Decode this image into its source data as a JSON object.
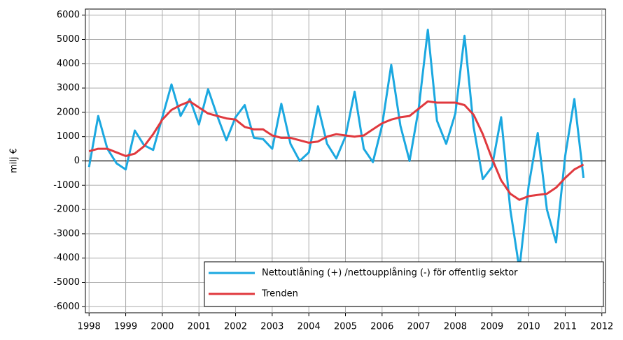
{
  "chart_data": {
    "type": "line",
    "ylabel": "milj €",
    "x": [
      1998,
      1998.25,
      1998.5,
      1998.75,
      1999,
      1999.25,
      1999.5,
      1999.75,
      2000,
      2000.25,
      2000.5,
      2000.75,
      2001,
      2001.25,
      2001.5,
      2001.75,
      2002,
      2002.25,
      2002.5,
      2002.75,
      2003,
      2003.25,
      2003.5,
      2003.75,
      2004,
      2004.25,
      2004.5,
      2004.75,
      2005,
      2005.25,
      2005.5,
      2005.75,
      2006,
      2006.25,
      2006.5,
      2006.75,
      2007,
      2007.25,
      2007.5,
      2007.75,
      2008,
      2008.25,
      2008.5,
      2008.75,
      2009,
      2009.25,
      2009.5,
      2009.75,
      2010,
      2010.25,
      2010.5,
      2010.75,
      2011,
      2011.25,
      2011.5
    ],
    "series": [
      {
        "name": "Nettoutlåning (+) /nettoupplåning (-) för offentlig sektor",
        "color": "#1ba8e0",
        "values": [
          -250,
          1850,
          500,
          -100,
          -350,
          1250,
          650,
          450,
          1800,
          3150,
          1850,
          2550,
          1500,
          2950,
          1850,
          850,
          1800,
          2300,
          950,
          900,
          500,
          2350,
          700,
          0,
          350,
          2250,
          700,
          100,
          1000,
          2850,
          500,
          -50,
          1450,
          3950,
          1450,
          0,
          2150,
          5400,
          1650,
          700,
          1950,
          5150,
          1400,
          -750,
          -250,
          1800,
          -2000,
          -4450,
          -1050,
          1150,
          -2000,
          -3350,
          200,
          2550,
          -700
        ]
      },
      {
        "name": "Trenden",
        "color": "#e0393e",
        "values": [
          400,
          500,
          500,
          350,
          200,
          300,
          600,
          1100,
          1700,
          2100,
          2300,
          2450,
          2200,
          1950,
          1850,
          1750,
          1700,
          1400,
          1300,
          1300,
          1050,
          950,
          950,
          850,
          750,
          800,
          1000,
          1100,
          1050,
          1000,
          1050,
          1300,
          1550,
          1700,
          1800,
          1850,
          2150,
          2450,
          2400,
          2400,
          2400,
          2300,
          1900,
          1100,
          100,
          -800,
          -1350,
          -1600,
          -1450,
          -1400,
          -1350,
          -1100,
          -700,
          -350,
          -150
        ]
      }
    ],
    "xlim": [
      1997.9,
      2012.1
    ],
    "xticks": [
      1998,
      1999,
      2000,
      2001,
      2002,
      2003,
      2004,
      2005,
      2006,
      2007,
      2008,
      2009,
      2010,
      2011,
      2012
    ],
    "ylim": [
      -6250,
      6250
    ],
    "yticks": [
      -6000,
      -5000,
      -4000,
      -3000,
      -2000,
      -1000,
      0,
      1000,
      2000,
      3000,
      4000,
      5000,
      6000
    ],
    "grid": true,
    "legend": "lower right"
  }
}
